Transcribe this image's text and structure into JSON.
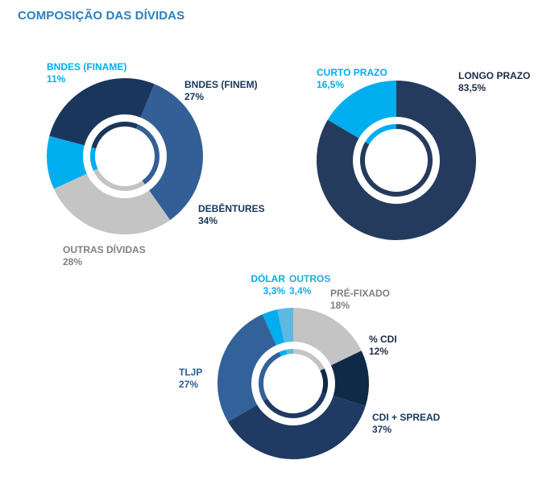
{
  "title": "COMPOSIÇÃO DAS DÍVIDAS",
  "chart_data": [
    {
      "type": "pie",
      "subtype": "donut",
      "slices": [
        {
          "label": "BNDES (FINEM)",
          "value": 27,
          "display": "27%",
          "color": "#1b365d"
        },
        {
          "label": "DEBÊNTURES",
          "value": 34,
          "display": "34%",
          "color": "#345f96"
        },
        {
          "label": "OUTRAS DÍVIDAS",
          "value": 28,
          "display": "28%",
          "color": "#c4c4c4"
        },
        {
          "label": "BNDES (FINAME)",
          "value": 11,
          "display": "11%",
          "color": "#00aeef"
        }
      ]
    },
    {
      "type": "pie",
      "subtype": "donut",
      "slices": [
        {
          "label": "LONGO PRAZO",
          "value": 83.5,
          "display": "83,5%",
          "color": "#243b5e"
        },
        {
          "label": "CURTO PRAZO",
          "value": 16.5,
          "display": "16,5%",
          "color": "#00aeef"
        }
      ]
    },
    {
      "type": "pie",
      "subtype": "donut",
      "slices": [
        {
          "label": "PRÉ-FIXADO",
          "value": 18,
          "display": "18%",
          "color": "#c4c4c4"
        },
        {
          "label": "% CDI",
          "value": 12,
          "display": "12%",
          "color": "#0f2a47"
        },
        {
          "label": "CDI + SPREAD",
          "value": 37,
          "display": "37%",
          "color": "#1f3a63"
        },
        {
          "label": "TLJP",
          "value": 27,
          "display": "27%",
          "color": "#33619a"
        },
        {
          "label": "DÓLAR",
          "value": 3.3,
          "display": "3,3%",
          "color": "#00aeef"
        },
        {
          "label": "OUTROS",
          "value": 3.4,
          "display": "3,4%",
          "color": "#5fb8e0"
        }
      ]
    }
  ]
}
